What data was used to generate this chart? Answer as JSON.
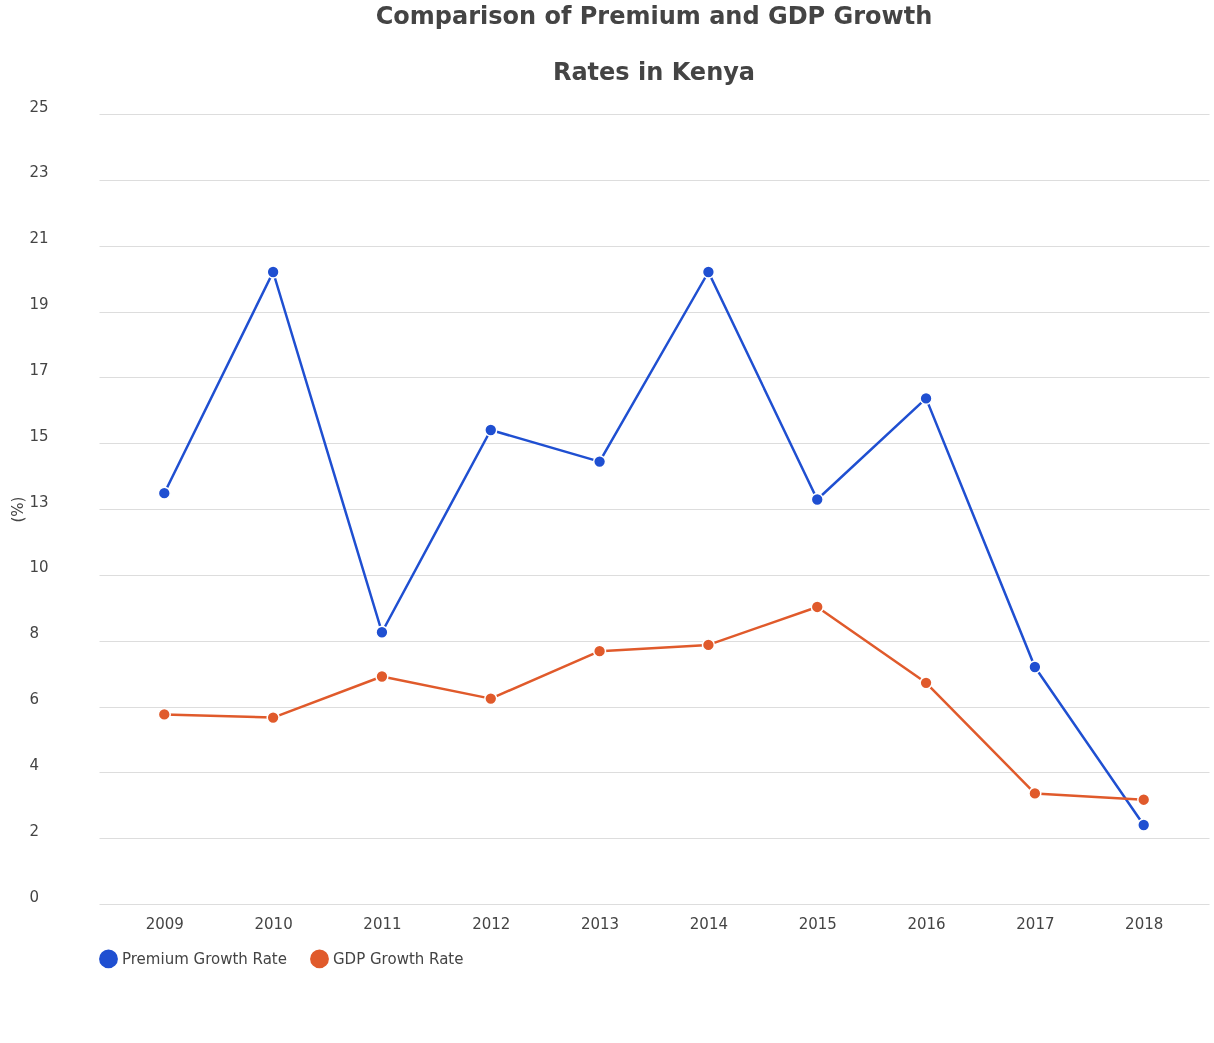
{
  "chart_data": {
    "type": "line",
    "title": "Comparison of Premium and GDP Growth\nRates in Kenya",
    "ylabel": "(%)",
    "categories": [
      "2009",
      "2010",
      "2011",
      "2012",
      "2013",
      "2014",
      "2015",
      "2016",
      "2017",
      "2018"
    ],
    "series": [
      {
        "name": "Premium Growth Rate",
        "color": "#1f4fd1",
        "values": [
          13.0,
          20.0,
          8.6,
          15.0,
          14.0,
          20.0,
          12.8,
          16.0,
          7.5,
          2.5
        ]
      },
      {
        "name": "GDP Growth Rate",
        "color": "#e05a2b",
        "values": [
          6.0,
          5.9,
          7.2,
          6.5,
          8.0,
          8.2,
          9.4,
          7.0,
          3.5,
          3.3
        ]
      }
    ],
    "ylim": [
      0,
      25
    ],
    "yticks": [
      0,
      {
        "value": 2.083,
        "label": "2"
      },
      {
        "value": 4.167,
        "label": "4"
      },
      {
        "value": 6.25,
        "label": "6"
      },
      {
        "value": 8.333,
        "label": "8"
      },
      {
        "value": 10.417,
        "label": "10"
      },
      {
        "value": 12.5,
        "label": "13"
      },
      {
        "value": 14.583,
        "label": "15"
      },
      {
        "value": 16.667,
        "label": "17"
      },
      {
        "value": 18.75,
        "label": "19"
      },
      {
        "value": 20.833,
        "label": "21"
      },
      {
        "value": 22.917,
        "label": "23"
      },
      25
    ],
    "grid": "y",
    "legend": "bottom",
    "marker": "circle",
    "line_style": "solid"
  }
}
